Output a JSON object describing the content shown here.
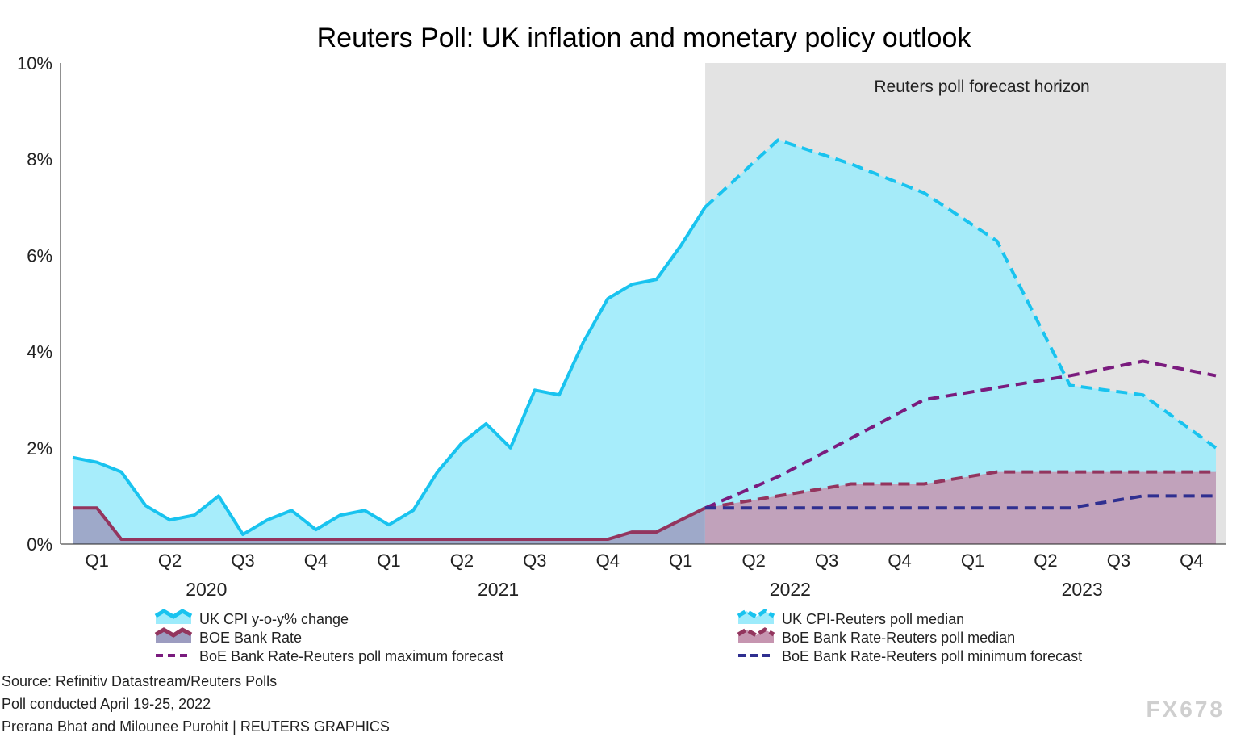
{
  "chart_data": {
    "type": "area",
    "title": "Reuters Poll: UK inflation and monetary policy outlook",
    "ylabel": "",
    "xlabel": "",
    "ylim": [
      0,
      10
    ],
    "y_ticks": [
      "0%",
      "2%",
      "4%",
      "6%",
      "8%",
      "10%"
    ],
    "x_range": [
      "2020-01",
      "2023-12"
    ],
    "grid": false,
    "quarter_labels": [
      "Q1",
      "Q2",
      "Q3",
      "Q4",
      "Q1",
      "Q2",
      "Q3",
      "Q4",
      "Q1",
      "Q2",
      "Q3",
      "Q4",
      "Q1",
      "Q2",
      "Q3",
      "Q4"
    ],
    "year_labels": [
      "2020",
      "2021",
      "2022",
      "2023"
    ],
    "forecast_region": {
      "start": "2022-04",
      "end": "2023-12",
      "label": "Reuters poll forecast horizon",
      "color": "#e3e3e3"
    },
    "series": [
      {
        "name": "UK CPI y-o-y% change",
        "style": "area-solid",
        "color": "#19c3ef",
        "fill": "#9debfb",
        "x": [
          "2020-01",
          "2020-02",
          "2020-03",
          "2020-04",
          "2020-05",
          "2020-06",
          "2020-07",
          "2020-08",
          "2020-09",
          "2020-10",
          "2020-11",
          "2020-12",
          "2021-01",
          "2021-02",
          "2021-03",
          "2021-04",
          "2021-05",
          "2021-06",
          "2021-07",
          "2021-08",
          "2021-09",
          "2021-10",
          "2021-11",
          "2021-12",
          "2022-01",
          "2022-02",
          "2022-03"
        ],
        "values": [
          1.8,
          1.7,
          1.5,
          0.8,
          0.5,
          0.6,
          1.0,
          0.2,
          0.5,
          0.7,
          0.3,
          0.6,
          0.7,
          0.4,
          0.7,
          1.5,
          2.1,
          2.5,
          2.0,
          3.2,
          3.1,
          4.2,
          5.1,
          5.4,
          5.5,
          6.2,
          7.0
        ]
      },
      {
        "name": "UK CPI-Reuters poll median",
        "style": "area-dashed",
        "color": "#19c3ef",
        "fill": "#9debfb",
        "x": [
          "2022-03",
          "2022-06",
          "2022-09",
          "2022-12",
          "2023-03",
          "2023-06",
          "2023-09",
          "2023-12"
        ],
        "values": [
          7.0,
          8.4,
          7.9,
          7.3,
          6.3,
          3.3,
          3.1,
          2.0
        ]
      },
      {
        "name": "BOE Bank Rate",
        "style": "area-solid",
        "color": "#93355e",
        "fill": "#9c9cc0",
        "x": [
          "2020-01",
          "2020-02",
          "2020-03",
          "2020-04",
          "2021-11",
          "2021-12",
          "2022-01",
          "2022-02",
          "2022-03"
        ],
        "values": [
          0.75,
          0.75,
          0.1,
          0.1,
          0.1,
          0.25,
          0.25,
          0.5,
          0.75
        ]
      },
      {
        "name": "BoE Bank Rate-Reuters poll median",
        "style": "area-dashed",
        "color": "#93355e",
        "fill": "#c695b0",
        "x": [
          "2022-03",
          "2022-06",
          "2022-09",
          "2022-12",
          "2023-03",
          "2023-06",
          "2023-09",
          "2023-12"
        ],
        "values": [
          0.75,
          1.0,
          1.25,
          1.25,
          1.5,
          1.5,
          1.5,
          1.5
        ]
      },
      {
        "name": "BoE Bank Rate-Reuters poll maximum forecast",
        "style": "dashed",
        "color": "#7a1b7e",
        "x": [
          "2022-03",
          "2022-06",
          "2022-09",
          "2022-12",
          "2023-03",
          "2023-06",
          "2023-09",
          "2023-12"
        ],
        "values": [
          0.75,
          1.4,
          2.2,
          3.0,
          3.25,
          3.5,
          3.8,
          3.5
        ]
      },
      {
        "name": "BoE Bank Rate-Reuters poll minimum forecast",
        "style": "dashed",
        "color": "#2f2f90",
        "x": [
          "2022-03",
          "2022-06",
          "2022-09",
          "2022-12",
          "2023-03",
          "2023-06",
          "2023-09",
          "2023-12"
        ],
        "values": [
          0.75,
          0.75,
          0.75,
          0.75,
          0.75,
          0.75,
          1.0,
          1.0
        ]
      }
    ]
  },
  "legend": {
    "left": [
      "UK CPI y-o-y% change",
      "BOE Bank Rate",
      "BoE Bank Rate-Reuters poll maximum forecast"
    ],
    "right": [
      "UK CPI-Reuters poll median",
      "BoE Bank Rate-Reuters poll median",
      "BoE Bank Rate-Reuters poll minimum forecast"
    ]
  },
  "footer": {
    "source": "Source: Refinitiv Datastream/Reuters Polls",
    "poll": "Poll conducted April 19-25, 2022",
    "credit": "Prerana Bhat and Milounee Purohit | REUTERS GRAPHICS"
  },
  "watermark": "FX678"
}
